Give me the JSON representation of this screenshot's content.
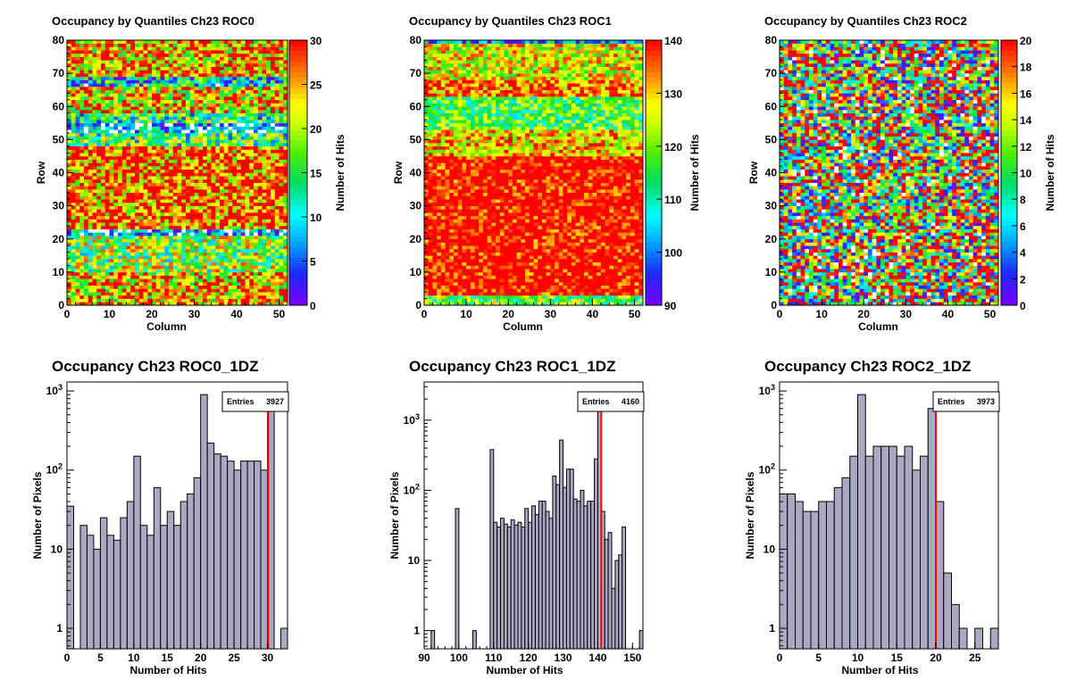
{
  "colors": {
    "hist_fill": "#a9a9c4",
    "hist_line": "#000000",
    "marker_line": "#ff0000"
  },
  "chart_data": [
    {
      "type": "heatmap",
      "title": "Occupancy by Quantiles Ch23 ROC0",
      "xlabel": "Column",
      "ylabel": "Row",
      "zlabel": "Number of Hits",
      "xlim": [
        0,
        52
      ],
      "ylim": [
        0,
        80
      ],
      "zlim": [
        0,
        30
      ],
      "xticks": [
        0,
        10,
        20,
        30,
        40,
        50
      ],
      "yticks": [
        0,
        10,
        20,
        30,
        40,
        50,
        60,
        70,
        80
      ],
      "zticks": [
        0,
        5,
        10,
        15,
        20,
        25,
        30
      ],
      "row_profile": [
        {
          "y": [
            0,
            10
          ],
          "level": 24
        },
        {
          "y": [
            10,
            21
          ],
          "level": 18
        },
        {
          "y": [
            21,
            23
          ],
          "level": 6
        },
        {
          "y": [
            23,
            48
          ],
          "level": 27
        },
        {
          "y": [
            48,
            52
          ],
          "level": 15
        },
        {
          "y": [
            52,
            55
          ],
          "level": 5
        },
        {
          "y": [
            55,
            58
          ],
          "level": 14
        },
        {
          "y": [
            58,
            66
          ],
          "level": 23
        },
        {
          "y": [
            66,
            69
          ],
          "level": 10
        },
        {
          "y": [
            69,
            80
          ],
          "level": 25
        }
      ]
    },
    {
      "type": "heatmap",
      "title": "Occupancy by Quantiles Ch23 ROC1",
      "xlabel": "Column",
      "ylabel": "Row",
      "zlabel": "Number of Hits",
      "xlim": [
        0,
        52
      ],
      "ylim": [
        0,
        80
      ],
      "zlim": [
        90,
        140
      ],
      "xticks": [
        0,
        10,
        20,
        30,
        40,
        50
      ],
      "yticks": [
        0,
        10,
        20,
        30,
        40,
        50,
        60,
        70,
        80
      ],
      "zticks": [
        90,
        100,
        110,
        120,
        130,
        140
      ],
      "row_profile": [
        {
          "y": [
            0,
            3
          ],
          "level": 118
        },
        {
          "y": [
            3,
            45
          ],
          "level": 142
        },
        {
          "y": [
            45,
            53
          ],
          "level": 130
        },
        {
          "y": [
            53,
            63
          ],
          "level": 117
        },
        {
          "y": [
            63,
            68
          ],
          "level": 134
        },
        {
          "y": [
            68,
            79
          ],
          "level": 126
        },
        {
          "y": [
            79,
            80
          ],
          "level": 104
        }
      ]
    },
    {
      "type": "heatmap",
      "title": "Occupancy by Quantiles Ch23 ROC2",
      "xlabel": "Column",
      "ylabel": "Row",
      "zlabel": "Number of Hits",
      "xlim": [
        0,
        52
      ],
      "ylim": [
        0,
        80
      ],
      "zlim": [
        0,
        20
      ],
      "xticks": [
        0,
        10,
        20,
        30,
        40,
        50
      ],
      "yticks": [
        0,
        10,
        20,
        30,
        40,
        50,
        60,
        70,
        80
      ],
      "zticks": [
        0,
        2,
        4,
        6,
        8,
        10,
        12,
        14,
        16,
        18,
        20
      ],
      "row_profile": [
        {
          "y": [
            0,
            80
          ],
          "level": 12
        }
      ]
    },
    {
      "type": "bar",
      "title": "Occupancy Ch23 ROC0_1DZ",
      "xlabel": "Number of Hits",
      "ylabel": "Number of Pixels",
      "ylog": true,
      "xlim": [
        0,
        33
      ],
      "ylim": [
        0.55,
        1300
      ],
      "xticks": [
        0,
        5,
        10,
        15,
        20,
        25,
        30
      ],
      "stats": {
        "label": "Entries",
        "value": "3927"
      },
      "marker_x": 30.1,
      "bin_width": 1,
      "bins": [
        {
          "x": 0,
          "y": 35
        },
        {
          "x": 2,
          "y": 20
        },
        {
          "x": 3,
          "y": 15
        },
        {
          "x": 4,
          "y": 10
        },
        {
          "x": 5,
          "y": 25
        },
        {
          "x": 6,
          "y": 15
        },
        {
          "x": 7,
          "y": 13
        },
        {
          "x": 8,
          "y": 25
        },
        {
          "x": 9,
          "y": 40
        },
        {
          "x": 10,
          "y": 150
        },
        {
          "x": 11,
          "y": 20
        },
        {
          "x": 12,
          "y": 15
        },
        {
          "x": 13,
          "y": 60
        },
        {
          "x": 14,
          "y": 20
        },
        {
          "x": 15,
          "y": 30
        },
        {
          "x": 16,
          "y": 20
        },
        {
          "x": 17,
          "y": 40
        },
        {
          "x": 18,
          "y": 50
        },
        {
          "x": 19,
          "y": 80
        },
        {
          "x": 20,
          "y": 900
        },
        {
          "x": 21,
          "y": 220
        },
        {
          "x": 22,
          "y": 160
        },
        {
          "x": 23,
          "y": 150
        },
        {
          "x": 24,
          "y": 130
        },
        {
          "x": 25,
          "y": 100
        },
        {
          "x": 26,
          "y": 130
        },
        {
          "x": 27,
          "y": 130
        },
        {
          "x": 28,
          "y": 130
        },
        {
          "x": 29,
          "y": 100
        },
        {
          "x": 30,
          "y": 700
        },
        {
          "x": 32,
          "y": 1
        }
      ]
    },
    {
      "type": "bar",
      "title": "Occupancy Ch23 ROC1_1DZ",
      "xlabel": "Number of Hits",
      "ylabel": "Number of Pixels",
      "ylog": true,
      "xlim": [
        90,
        153
      ],
      "ylim": [
        0.55,
        3500
      ],
      "xticks": [
        90,
        100,
        110,
        120,
        130,
        140,
        150
      ],
      "stats": {
        "label": "Entries",
        "value": "4160"
      },
      "marker_x": 141,
      "bin_width": 1,
      "bins": [
        {
          "x": 92,
          "y": 1
        },
        {
          "x": 99,
          "y": 55
        },
        {
          "x": 104,
          "y": 1
        },
        {
          "x": 109,
          "y": 380
        },
        {
          "x": 110,
          "y": 35
        },
        {
          "x": 111,
          "y": 30
        },
        {
          "x": 112,
          "y": 40
        },
        {
          "x": 113,
          "y": 33
        },
        {
          "x": 114,
          "y": 30
        },
        {
          "x": 115,
          "y": 38
        },
        {
          "x": 116,
          "y": 32
        },
        {
          "x": 117,
          "y": 35
        },
        {
          "x": 118,
          "y": 30
        },
        {
          "x": 119,
          "y": 55
        },
        {
          "x": 120,
          "y": 35
        },
        {
          "x": 121,
          "y": 60
        },
        {
          "x": 122,
          "y": 45
        },
        {
          "x": 123,
          "y": 70
        },
        {
          "x": 124,
          "y": 70
        },
        {
          "x": 125,
          "y": 50
        },
        {
          "x": 126,
          "y": 40
        },
        {
          "x": 127,
          "y": 160
        },
        {
          "x": 128,
          "y": 120
        },
        {
          "x": 129,
          "y": 520
        },
        {
          "x": 130,
          "y": 110
        },
        {
          "x": 131,
          "y": 200
        },
        {
          "x": 132,
          "y": 200
        },
        {
          "x": 133,
          "y": 75
        },
        {
          "x": 134,
          "y": 70
        },
        {
          "x": 135,
          "y": 100
        },
        {
          "x": 136,
          "y": 60
        },
        {
          "x": 137,
          "y": 70
        },
        {
          "x": 138,
          "y": 70
        },
        {
          "x": 139,
          "y": 280
        },
        {
          "x": 140,
          "y": 1500
        },
        {
          "x": 141,
          "y": 50
        },
        {
          "x": 142,
          "y": 20
        },
        {
          "x": 143,
          "y": 25
        },
        {
          "x": 144,
          "y": 4
        },
        {
          "x": 145,
          "y": 10
        },
        {
          "x": 146,
          "y": 12
        },
        {
          "x": 147,
          "y": 30
        },
        {
          "x": 152,
          "y": 1
        }
      ]
    },
    {
      "type": "bar",
      "title": "Occupancy Ch23 ROC2_1DZ",
      "xlabel": "Number of Hits",
      "ylabel": "Number of Pixels",
      "ylog": true,
      "xlim": [
        0,
        28
      ],
      "ylim": [
        0.55,
        1300
      ],
      "xticks": [
        0,
        5,
        10,
        15,
        20,
        25
      ],
      "stats": {
        "label": "Entries",
        "value": "3973"
      },
      "marker_x": 20,
      "bin_width": 1,
      "bins": [
        {
          "x": 0,
          "y": 50
        },
        {
          "x": 1,
          "y": 50
        },
        {
          "x": 2,
          "y": 40
        },
        {
          "x": 3,
          "y": 30
        },
        {
          "x": 4,
          "y": 30
        },
        {
          "x": 5,
          "y": 40
        },
        {
          "x": 6,
          "y": 40
        },
        {
          "x": 7,
          "y": 60
        },
        {
          "x": 8,
          "y": 80
        },
        {
          "x": 9,
          "y": 150
        },
        {
          "x": 10,
          "y": 900
        },
        {
          "x": 11,
          "y": 150
        },
        {
          "x": 12,
          "y": 200
        },
        {
          "x": 13,
          "y": 200
        },
        {
          "x": 14,
          "y": 200
        },
        {
          "x": 15,
          "y": 150
        },
        {
          "x": 16,
          "y": 200
        },
        {
          "x": 17,
          "y": 100
        },
        {
          "x": 18,
          "y": 150
        },
        {
          "x": 19,
          "y": 600
        },
        {
          "x": 20,
          "y": 40
        },
        {
          "x": 21,
          "y": 5
        },
        {
          "x": 22,
          "y": 2
        },
        {
          "x": 23,
          "y": 1
        },
        {
          "x": 25,
          "y": 1
        },
        {
          "x": 27,
          "y": 1
        }
      ]
    }
  ]
}
